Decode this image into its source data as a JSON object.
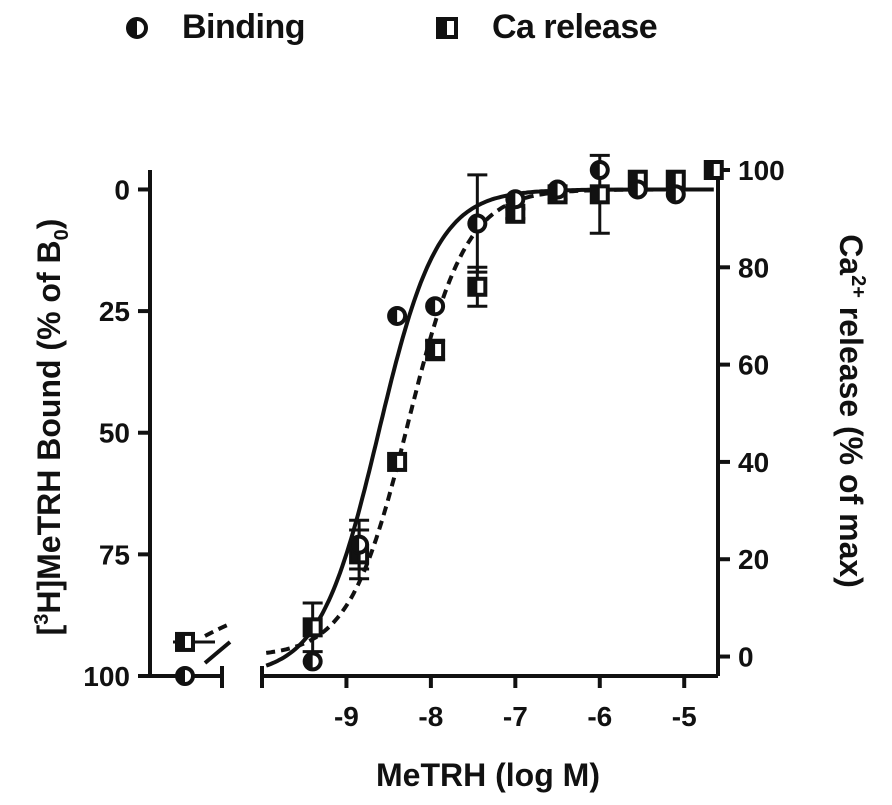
{
  "chart_data": {
    "type": "scatter",
    "legend": [
      {
        "name": "Binding",
        "marker": "circle"
      },
      {
        "name": "Ca release",
        "marker": "square"
      }
    ],
    "xlabel": "MeTRH (log M)",
    "ylabel_left": {
      "prefix": "[",
      "sup": "3",
      "mid": "H]MeTRH Bound (% of B",
      "sub": "0",
      "suffix": ")"
    },
    "ylabel_right": {
      "prefix": "Ca",
      "sup": "2+",
      "suffix": " release (% of max)"
    },
    "x_ticks": [
      "-9",
      "-8",
      "-7",
      "-6",
      "-5"
    ],
    "x_tick_values": [
      -9,
      -8,
      -7,
      -6,
      -5
    ],
    "x_range": [
      -10,
      -4.6
    ],
    "y_left_ticks": [
      "0",
      "25",
      "50",
      "75",
      "100"
    ],
    "y_left_tick_values": [
      0,
      25,
      50,
      75,
      100
    ],
    "y_left_range": [
      100,
      -4
    ],
    "y_left_inverted": true,
    "y_right_ticks": [
      "0",
      "20",
      "40",
      "60",
      "80",
      "100"
    ],
    "y_right_tick_values": [
      0,
      20,
      40,
      60,
      80,
      100
    ],
    "y_right_range": [
      -4,
      100
    ],
    "series": [
      {
        "name": "Binding",
        "axis": "left",
        "control": {
          "y": 100
        },
        "points": [
          {
            "x": -9.4,
            "y": 97,
            "err": 0
          },
          {
            "x": -8.85,
            "y": 73,
            "err": 5
          },
          {
            "x": -8.4,
            "y": 26,
            "err": 0
          },
          {
            "x": -7.95,
            "y": 24,
            "err": 0
          },
          {
            "x": -7.45,
            "y": 7,
            "err": 10
          },
          {
            "x": -7.0,
            "y": 2,
            "err": 0
          },
          {
            "x": -6.5,
            "y": 0,
            "err": 0
          },
          {
            "x": -6.0,
            "y": -4,
            "err": 0
          },
          {
            "x": -5.55,
            "y": 0,
            "err": 0
          },
          {
            "x": -5.1,
            "y": 1,
            "err": 0
          }
        ],
        "fit": {
          "bottom": 100,
          "top": 0,
          "logEC50": -8.62,
          "hill": 1.25
        }
      },
      {
        "name": "Ca release",
        "axis": "right",
        "control": {
          "y": 3,
          "err": 1.5
        },
        "points": [
          {
            "x": -9.4,
            "y": 6,
            "err": 5
          },
          {
            "x": -8.85,
            "y": 21,
            "err": 5
          },
          {
            "x": -8.4,
            "y": 40,
            "err": 0
          },
          {
            "x": -7.95,
            "y": 63,
            "err": 2
          },
          {
            "x": -7.45,
            "y": 76,
            "err": 4
          },
          {
            "x": -7.0,
            "y": 91,
            "err": 1
          },
          {
            "x": -6.5,
            "y": 95,
            "err": 1
          },
          {
            "x": -6.0,
            "y": 95,
            "err": 8
          },
          {
            "x": -5.55,
            "y": 98,
            "err": 0
          },
          {
            "x": -5.1,
            "y": 98,
            "err": 0
          },
          {
            "x": -4.65,
            "y": 100,
            "err": 0
          }
        ],
        "fit": {
          "bottom": 0,
          "top": 96,
          "logEC50": -8.27,
          "hill": 1.25
        }
      }
    ],
    "grid": false,
    "legend_position": "top"
  }
}
